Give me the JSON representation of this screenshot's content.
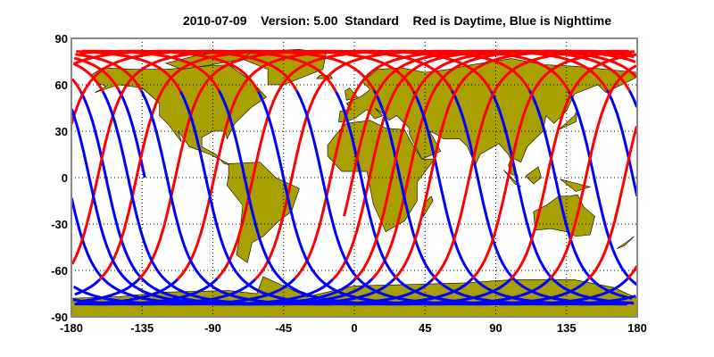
{
  "title": {
    "date": "2010-07-09",
    "version": "Version: 5.00",
    "mode": "Standard",
    "legend": "Red is Daytime, Blue is Nighttime"
  },
  "map": {
    "projection": "equirectangular",
    "lon_range": [
      -180,
      180
    ],
    "lat_range": [
      -90,
      90
    ],
    "x_ticks": [
      "-180",
      "-135",
      "-90",
      "-45",
      "0",
      "45",
      "90",
      "135",
      "180"
    ],
    "y_ticks": [
      "90",
      "60",
      "30",
      "0",
      "-30",
      "-60",
      "-90"
    ],
    "grid": "dotted",
    "colors": {
      "land": "#a8a000",
      "daytime": "#ff0000",
      "nighttime": "#0000ff",
      "ocean": "#ffffff"
    },
    "track_legend": {
      "daytime": "red",
      "nighttime": "blue"
    }
  }
}
